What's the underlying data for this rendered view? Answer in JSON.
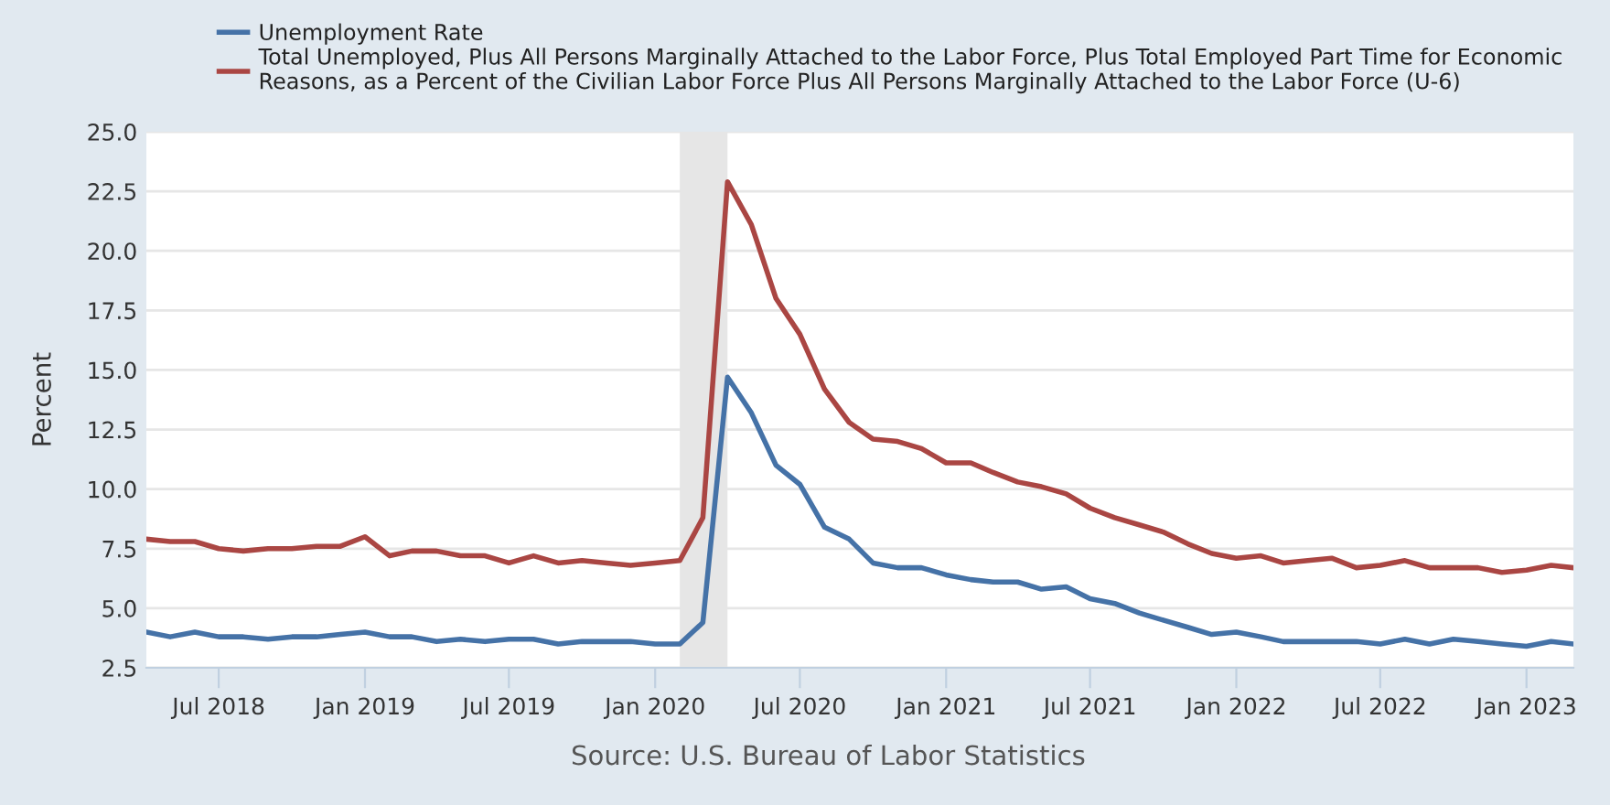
{
  "chart_data": {
    "type": "line",
    "ylabel": "Percent",
    "annotations": [
      "Source: U.S. Bureau of Labor Statistics"
    ],
    "x": [
      "2018-04",
      "2018-05",
      "2018-06",
      "2018-07",
      "2018-08",
      "2018-09",
      "2018-10",
      "2018-11",
      "2018-12",
      "2019-01",
      "2019-02",
      "2019-03",
      "2019-04",
      "2019-05",
      "2019-06",
      "2019-07",
      "2019-08",
      "2019-09",
      "2019-10",
      "2019-11",
      "2019-12",
      "2020-01",
      "2020-02",
      "2020-03",
      "2020-04",
      "2020-05",
      "2020-06",
      "2020-07",
      "2020-08",
      "2020-09",
      "2020-10",
      "2020-11",
      "2020-12",
      "2021-01",
      "2021-02",
      "2021-03",
      "2021-04",
      "2021-05",
      "2021-06",
      "2021-07",
      "2021-08",
      "2021-09",
      "2021-10",
      "2021-11",
      "2021-12",
      "2022-01",
      "2022-02",
      "2022-03",
      "2022-04",
      "2022-05",
      "2022-06",
      "2022-07",
      "2022-08",
      "2022-09",
      "2022-10",
      "2022-11",
      "2022-12",
      "2023-01",
      "2023-02",
      "2023-03"
    ],
    "series": [
      {
        "name": "Unemployment Rate",
        "color": "#4572a7",
        "values": [
          4.0,
          3.8,
          4.0,
          3.8,
          3.8,
          3.7,
          3.8,
          3.8,
          3.9,
          4.0,
          3.8,
          3.8,
          3.6,
          3.7,
          3.6,
          3.7,
          3.7,
          3.5,
          3.6,
          3.6,
          3.6,
          3.5,
          3.5,
          4.4,
          14.7,
          13.2,
          11.0,
          10.2,
          8.4,
          7.9,
          6.9,
          6.7,
          6.7,
          6.4,
          6.2,
          6.1,
          6.1,
          5.8,
          5.9,
          5.4,
          5.2,
          4.8,
          4.5,
          4.2,
          3.9,
          4.0,
          3.8,
          3.6,
          3.6,
          3.6,
          3.6,
          3.5,
          3.7,
          3.5,
          3.7,
          3.6,
          3.5,
          3.4,
          3.6,
          3.5
        ]
      },
      {
        "name": "Total Unemployed, Plus All Persons Marginally Attached to the Labor Force, Plus Total Employed Part Time for Economic\nReasons, as a Percent of the Civilian Labor Force Plus All Persons Marginally Attached to the Labor Force (U-6)",
        "color": "#aa4643",
        "values": [
          7.9,
          7.8,
          7.8,
          7.5,
          7.4,
          7.5,
          7.5,
          7.6,
          7.6,
          8.0,
          7.2,
          7.4,
          7.4,
          7.2,
          7.2,
          6.9,
          7.2,
          6.9,
          7.0,
          6.9,
          6.8,
          6.9,
          7.0,
          8.8,
          22.9,
          21.1,
          18.0,
          16.5,
          14.2,
          12.8,
          12.1,
          12.0,
          11.7,
          11.1,
          11.1,
          10.7,
          10.3,
          10.1,
          9.8,
          9.2,
          8.8,
          8.5,
          8.2,
          7.7,
          7.3,
          7.1,
          7.2,
          6.9,
          7.0,
          7.1,
          6.7,
          6.8,
          7.0,
          6.7,
          6.7,
          6.7,
          6.5,
          6.6,
          6.8,
          6.7
        ]
      }
    ],
    "xlim": [
      "2018-04",
      "2023-03"
    ],
    "xticks": [
      {
        "value": "2018-07",
        "label": "Jul 2018"
      },
      {
        "value": "2019-01",
        "label": "Jan 2019"
      },
      {
        "value": "2019-07",
        "label": "Jul 2019"
      },
      {
        "value": "2020-01",
        "label": "Jan 2020"
      },
      {
        "value": "2020-07",
        "label": "Jul 2020"
      },
      {
        "value": "2021-01",
        "label": "Jan 2021"
      },
      {
        "value": "2021-07",
        "label": "Jul 2021"
      },
      {
        "value": "2022-01",
        "label": "Jan 2022"
      },
      {
        "value": "2022-07",
        "label": "Jul 2022"
      },
      {
        "value": "2023-01",
        "label": "Jan 2023"
      }
    ],
    "ylim": [
      2.5,
      25.0
    ],
    "yticks": [
      {
        "value": 2.5,
        "label": "2.5"
      },
      {
        "value": 5.0,
        "label": "5.0"
      },
      {
        "value": 7.5,
        "label": "7.5"
      },
      {
        "value": 10.0,
        "label": "10.0"
      },
      {
        "value": 12.5,
        "label": "12.5"
      },
      {
        "value": 15.0,
        "label": "15.0"
      },
      {
        "value": 17.5,
        "label": "17.5"
      },
      {
        "value": 20.0,
        "label": "20.0"
      },
      {
        "value": 22.5,
        "label": "22.5"
      },
      {
        "value": 25.0,
        "label": "25.0"
      }
    ],
    "bands": [
      {
        "axis": "x",
        "from": "2020-02",
        "to": "2020-04",
        "color": "#e6e6e6"
      }
    ],
    "grid": "y",
    "legend": "top left",
    "line_style": "solid",
    "marker": "none"
  }
}
